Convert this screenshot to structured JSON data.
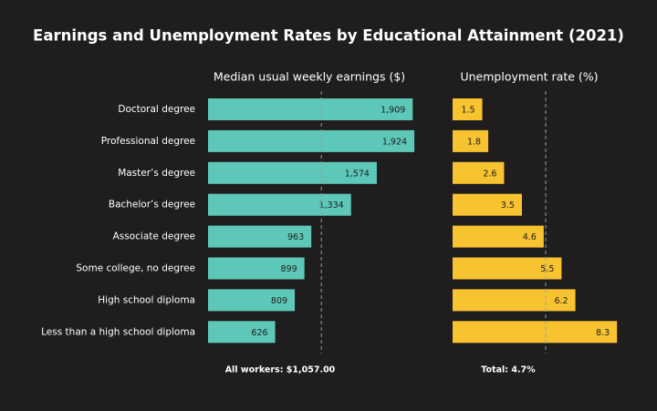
{
  "title": "Earnings and Unemployment Rates by Educational Attainment (2021)",
  "chart_data": [
    {
      "type": "bar",
      "orientation": "horizontal",
      "title": "Median usual weekly earnings ($)",
      "categories": [
        "Doctoral degree",
        "Professional degree",
        "Master’s degree",
        "Bachelor’s degree",
        "Associate degree",
        "Some college, no degree",
        "High school diploma",
        "Less than a high school diploma"
      ],
      "values": [
        1909,
        1924,
        1574,
        1334,
        963,
        899,
        809,
        626
      ],
      "value_labels": [
        "1,909",
        "1,924",
        "1,574",
        "1,334",
        "963",
        "899",
        "809",
        "626"
      ],
      "color": "#5ec8b8",
      "xlim": [
        0,
        2000
      ],
      "reference": {
        "value": 1057,
        "label": "All workers: $1,057.00"
      }
    },
    {
      "type": "bar",
      "orientation": "horizontal",
      "title": "Unemployment rate (%)",
      "values": [
        1.5,
        1.8,
        2.6,
        3.5,
        4.6,
        5.5,
        6.2,
        8.3
      ],
      "color": "#f8c331",
      "xlim": [
        0,
        8.5
      ],
      "reference": {
        "value": 4.7,
        "label": "Total: 4.7%"
      }
    }
  ]
}
